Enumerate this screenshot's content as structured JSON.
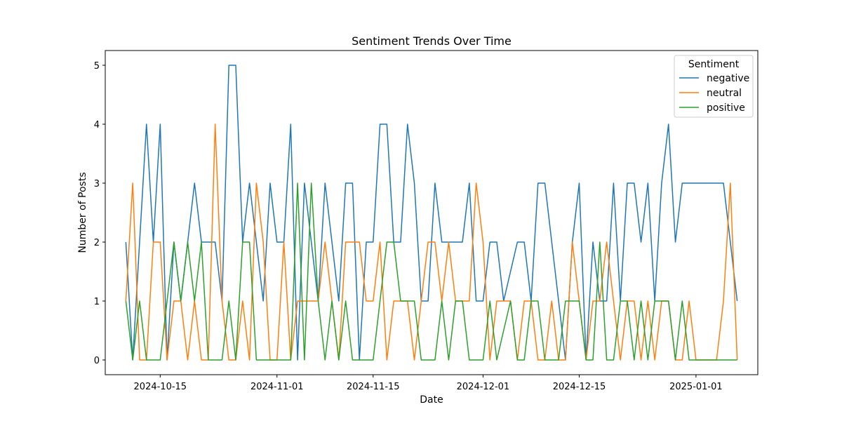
{
  "chart_data": {
    "type": "line",
    "title": "Sentiment Trends Over Time",
    "xlabel": "Date",
    "ylabel": "Number of Posts",
    "x_start": "2024-10-10",
    "x_end": "2025-01-07",
    "xlim": [
      "2024-10-07",
      "2025-01-10"
    ],
    "ylim": [
      -0.25,
      5.25
    ],
    "x_ticks": [
      "2024-10-15",
      "2024-11-01",
      "2024-11-15",
      "2024-12-01",
      "2024-12-15",
      "2025-01-01"
    ],
    "y_ticks": [
      0,
      1,
      2,
      3,
      4,
      5
    ],
    "grid": false,
    "legend": {
      "title": "Sentiment",
      "position": "top-right"
    },
    "series": [
      {
        "name": "negative",
        "color": "#1f77b4",
        "values": [
          2,
          0,
          2,
          4,
          2,
          4,
          0,
          2,
          1,
          2,
          3,
          2,
          2,
          2,
          1,
          5,
          5,
          2,
          3,
          2,
          1,
          3,
          2,
          2,
          4,
          0,
          3,
          2,
          1,
          3,
          2,
          1,
          3,
          3,
          0,
          2,
          2,
          4,
          4,
          2,
          2,
          4,
          3,
          1,
          1,
          3,
          2,
          2,
          2,
          2,
          3,
          1,
          1,
          2,
          2,
          1,
          1.5,
          2,
          2,
          1,
          3,
          3,
          2,
          1,
          0,
          2,
          3,
          0,
          2,
          1,
          1,
          3,
          1,
          3,
          3,
          2,
          3,
          1,
          3,
          4,
          2,
          3,
          3,
          3,
          3,
          3,
          3,
          3,
          2,
          1
        ]
      },
      {
        "name": "neutral",
        "color": "#ff7f0e",
        "values": [
          1,
          3,
          0,
          0,
          2,
          2,
          0,
          1,
          1,
          0,
          1,
          0,
          0,
          4,
          1,
          0,
          0,
          1,
          0,
          3,
          2,
          0,
          0,
          2,
          0,
          1,
          1,
          1,
          1,
          2,
          1,
          0,
          2,
          2,
          2,
          1,
          1,
          2,
          0,
          1,
          1,
          1,
          0,
          1,
          2,
          2,
          1,
          2,
          1,
          1,
          1,
          3,
          2,
          0,
          1,
          1,
          1,
          0,
          1,
          1,
          0,
          0,
          1,
          0,
          0,
          2,
          1,
          0,
          1,
          1,
          2,
          1,
          0,
          1,
          1,
          0,
          1,
          0,
          1,
          1,
          0,
          0,
          1,
          0,
          0,
          0,
          0,
          1,
          3,
          0
        ]
      },
      {
        "name": "positive",
        "color": "#2ca02c",
        "values": [
          1,
          0,
          1,
          0,
          0,
          0,
          1,
          2,
          1,
          2,
          1,
          2,
          0,
          0,
          0,
          1,
          0,
          2,
          2,
          0,
          0,
          0,
          0,
          0,
          0,
          3,
          0,
          3,
          1,
          0,
          1,
          0,
          1,
          0,
          0,
          0,
          0,
          1,
          2,
          2,
          1,
          1,
          1,
          0,
          0,
          0,
          1,
          0,
          1,
          1,
          0,
          0,
          0,
          1,
          0,
          0.5,
          1,
          0,
          0,
          1,
          1,
          0,
          0,
          0,
          1,
          1,
          1,
          0,
          0,
          2,
          0,
          0,
          1,
          1,
          0,
          1,
          0,
          1,
          1,
          1,
          0,
          1,
          0,
          0,
          0,
          0,
          0,
          0,
          0,
          0
        ]
      }
    ]
  }
}
